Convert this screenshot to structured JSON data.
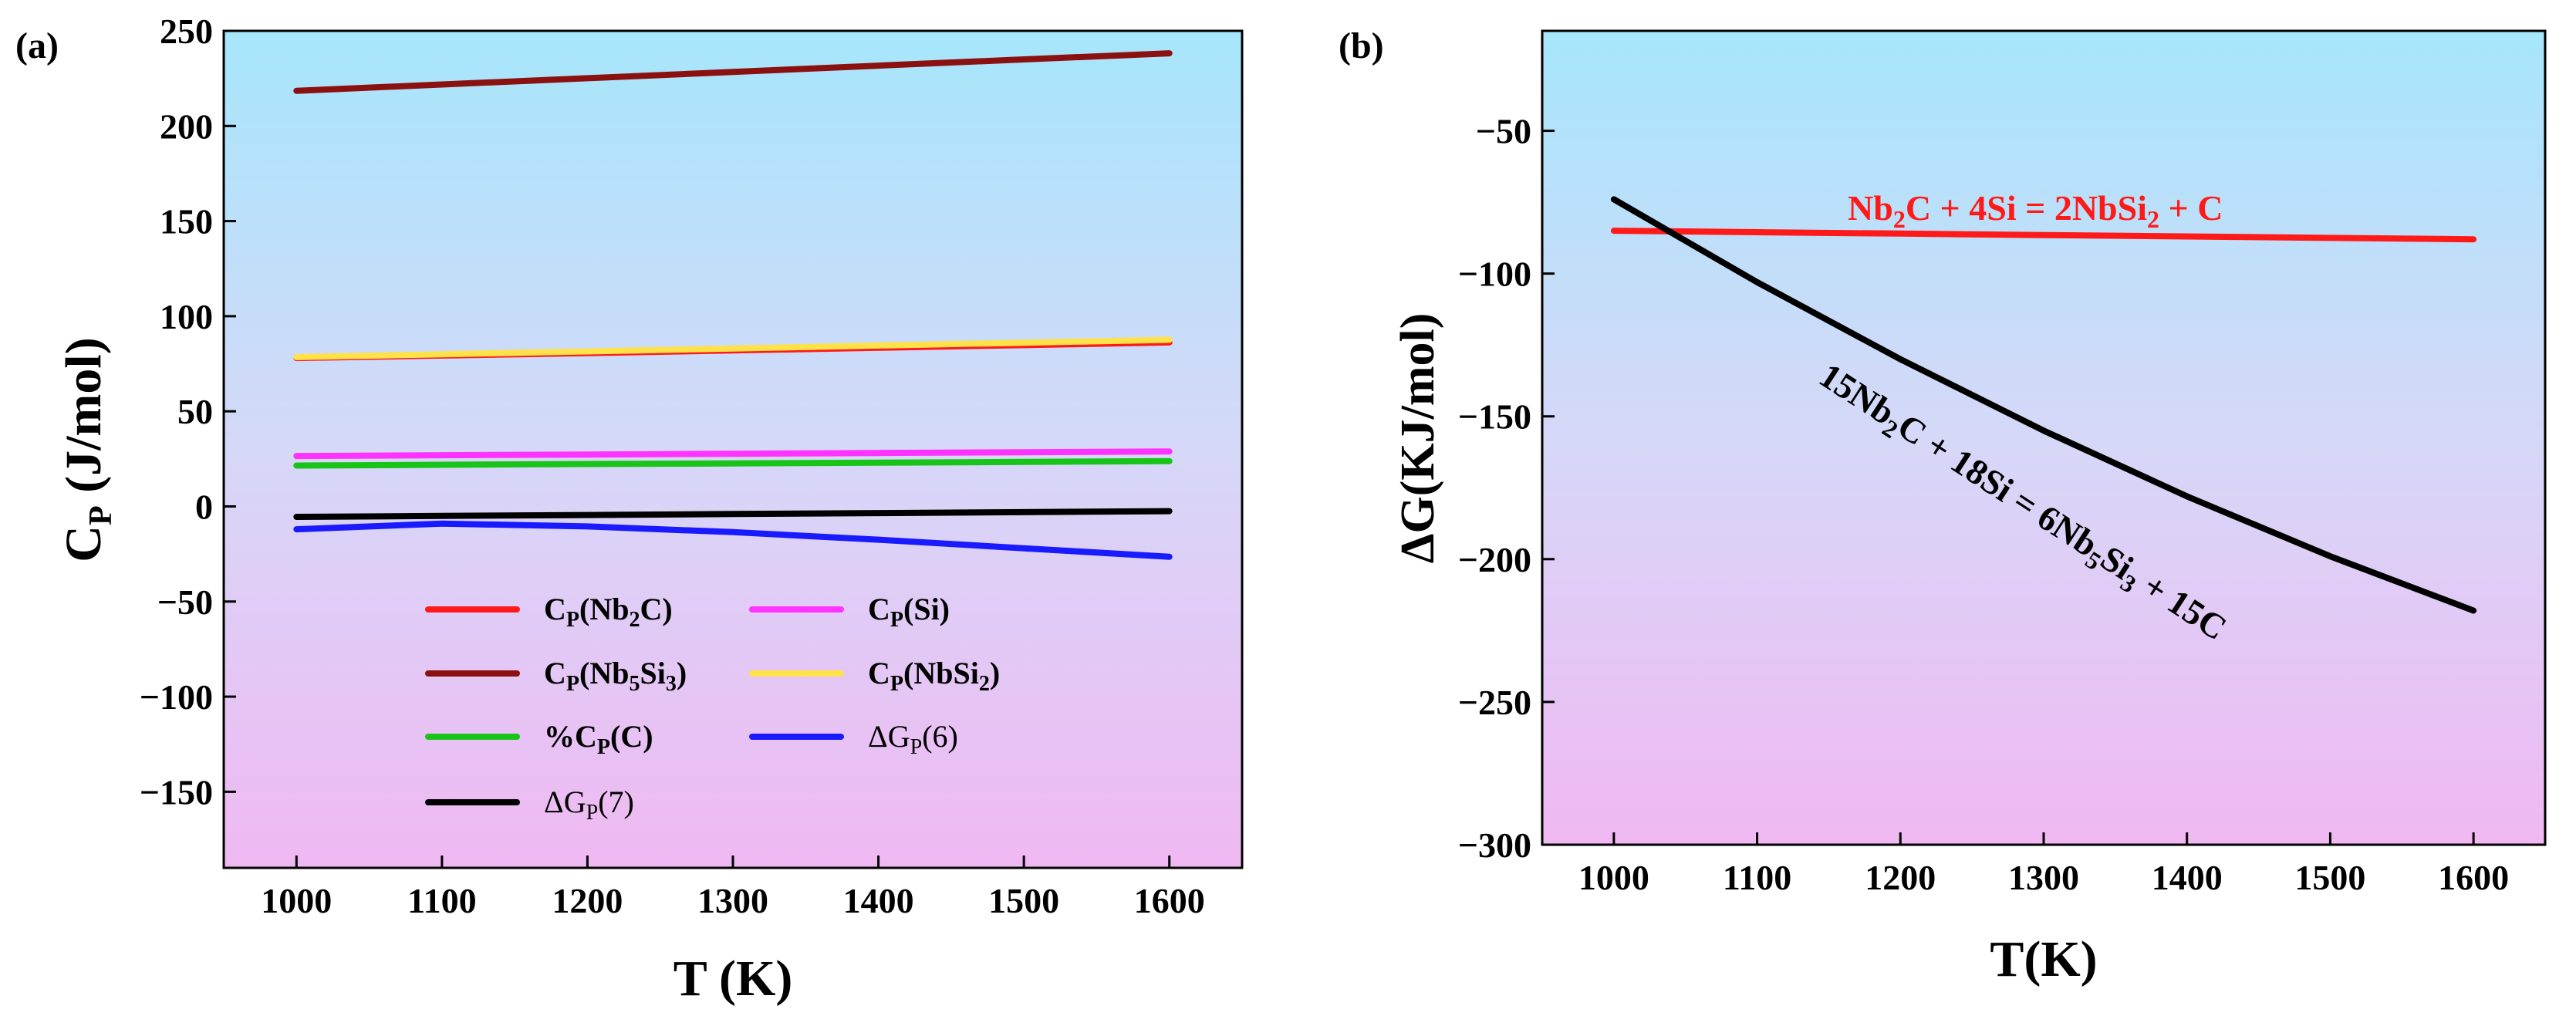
{
  "chart_data": [
    {
      "panel_label": "(a)",
      "type": "line",
      "xlabel": "T (K)",
      "ylabel_main": "C",
      "ylabel_sub": "P",
      "ylabel_rest": " (J/mol)",
      "xlim": [
        950,
        1650
      ],
      "ylim": [
        -190,
        250
      ],
      "xticks": [
        1000,
        1100,
        1200,
        1300,
        1400,
        1500,
        1600
      ],
      "yticks": [
        250,
        200,
        150,
        100,
        50,
        0,
        -50,
        -100,
        -150
      ],
      "x": [
        1000,
        1100,
        1200,
        1300,
        1400,
        1500,
        1600
      ],
      "series": [
        {
          "name": "Cp(Nb2C)",
          "label_main": "C",
          "label_sub1": "P",
          "label_mid": "(Nb",
          "label_sub2": "2",
          "label_end": "C)",
          "color": "#ff1a1a",
          "values": [
            78,
            79.3,
            80.6,
            82,
            83.4,
            84.8,
            86.2
          ]
        },
        {
          "name": "Cp(Si)",
          "label_main": "C",
          "label_sub1": "P",
          "label_mid": "(Si)",
          "label_sub2": "",
          "label_end": "",
          "color": "#ff33ff",
          "values": [
            26.5,
            26.9,
            27.3,
            27.7,
            28.1,
            28.5,
            28.9
          ]
        },
        {
          "name": "Cp(Nb5Si3)",
          "label_main": "C",
          "label_sub1": "P",
          "label_mid": "(Nb",
          "label_sub2": "5",
          "label_end": "Si",
          "label_sub3": "3",
          "label_end2": ")",
          "color": "#8b1010",
          "values": [
            218.5,
            221.8,
            225.1,
            228.4,
            231.7,
            235,
            238.2
          ]
        },
        {
          "name": "Cp(NbSi2)",
          "label_main": "C",
          "label_sub1": "P",
          "label_mid": "(NbSi",
          "label_sub2": "2",
          "label_end": ")",
          "color": "#ffe24a",
          "values": [
            78.5,
            80,
            81.5,
            83,
            84.6,
            86.1,
            87.6
          ]
        },
        {
          "name": "%Cp(C)",
          "label_main": "%C",
          "label_sub1": "P",
          "label_mid": "(C)",
          "label_sub2": "",
          "label_end": "",
          "color": "#19c419",
          "values": [
            21.5,
            21.9,
            22.3,
            22.6,
            23,
            23.4,
            23.8
          ]
        },
        {
          "name": "ΔGp(6)",
          "label_main": "ΔG",
          "label_sub1": "P",
          "label_mid": "(6)",
          "label_sub2": "",
          "label_end": "",
          "color": "#1a1aff",
          "values": [
            -12,
            -9,
            -10.5,
            -13.5,
            -17.5,
            -22,
            -26.5
          ]
        },
        {
          "name": "ΔGp(7)",
          "label_main": "ΔG",
          "label_sub1": "P",
          "label_mid": "(7)",
          "label_sub2": "",
          "label_end": "",
          "color": "#000000",
          "values": [
            -5.5,
            -5,
            -4.5,
            -4,
            -3.5,
            -3,
            -2.5
          ]
        }
      ]
    },
    {
      "panel_label": "(b)",
      "type": "line",
      "xlabel": "T(K)",
      "ylabel": "ΔG(KJ/mol)",
      "xlim": [
        950,
        1650
      ],
      "ylim": [
        -300,
        -15
      ],
      "xticks": [
        1000,
        1100,
        1200,
        1300,
        1400,
        1500,
        1600
      ],
      "yticks": [
        -50,
        -100,
        -150,
        -200,
        -250,
        -300
      ],
      "x": [
        1000,
        1100,
        1200,
        1300,
        1400,
        1500,
        1600
      ],
      "series": [
        {
          "name": "Nb2C + 4Si = 2NbSi2 + C",
          "color": "#ff1a1a",
          "values": [
            -85,
            -85.5,
            -86,
            -86.5,
            -87,
            -87.5,
            -88
          ]
        },
        {
          "name": "15Nb2C + 18Si = 6Nb5Si3 + 15C",
          "color": "#000000",
          "values": [
            -74,
            -103,
            -130,
            -155,
            -178,
            -199,
            -218
          ]
        }
      ],
      "annotations": [
        {
          "parts": [
            [
              "Nb",
              ""
            ],
            [
              "2",
              "sub"
            ],
            [
              "C + 4Si = 2NbSi",
              ""
            ],
            [
              "2",
              "sub"
            ],
            [
              " + C",
              ""
            ]
          ],
          "color": "#ff1a1a"
        },
        {
          "parts": [
            [
              "15Nb",
              ""
            ],
            [
              "2",
              "sub"
            ],
            [
              "C + 18Si = 6Nb",
              ""
            ],
            [
              "5",
              "sub"
            ],
            [
              "Si",
              ""
            ],
            [
              "3",
              "sub"
            ],
            [
              " + 15C",
              ""
            ]
          ],
          "color": "#000000"
        }
      ]
    }
  ]
}
